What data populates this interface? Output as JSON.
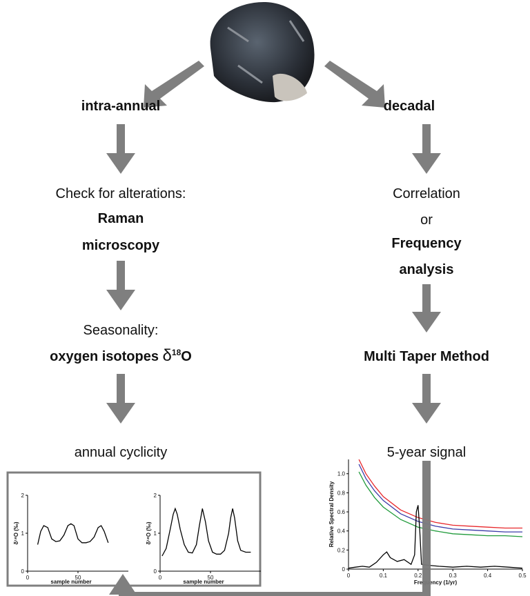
{
  "left": {
    "heading": "intra-annual",
    "check": "Check for alterations:",
    "method_1": "Raman",
    "method_2": "microscopy",
    "seasonality": "Seasonality:",
    "isotopes": "oxygen isotopes ",
    "delta": "δ",
    "sup": "18",
    "element": "O",
    "result": "annual cyclicity"
  },
  "right": {
    "heading": "decadal",
    "correlation": "Correlation",
    "or": "or",
    "frequency_1": "Frequency",
    "frequency_2": "analysis",
    "method": "Multi Taper Method",
    "result": "5-year signal"
  },
  "chart_data": [
    {
      "type": "line",
      "ylabel": "δ¹⁸O (‰)",
      "xlabel": "sample number",
      "xlim": [
        0,
        100
      ],
      "ylim": [
        0,
        2
      ],
      "xticks": [
        0,
        50
      ],
      "yticks": [
        0,
        1,
        2
      ],
      "x": [
        10,
        13,
        16,
        20,
        24,
        28,
        32,
        36,
        40,
        43,
        46,
        50,
        54,
        58,
        62,
        66,
        70,
        73,
        76,
        80
      ],
      "series": [
        {
          "color": "#000000",
          "values": [
            0.7,
            1.05,
            1.2,
            1.15,
            0.85,
            0.78,
            0.8,
            0.95,
            1.2,
            1.25,
            1.2,
            0.85,
            0.75,
            0.75,
            0.78,
            0.9,
            1.15,
            1.2,
            1.05,
            0.75
          ]
        }
      ]
    },
    {
      "type": "line",
      "ylabel": "δ¹⁸O (‰)",
      "xlabel": "sample number",
      "xlim": [
        0,
        100
      ],
      "ylim": [
        0,
        2
      ],
      "xticks": [
        0,
        50
      ],
      "yticks": [
        0,
        1,
        2
      ],
      "x": [
        2,
        6,
        10,
        13,
        15,
        17,
        20,
        24,
        28,
        32,
        36,
        39,
        42,
        45,
        48,
        52,
        56,
        60,
        64,
        68,
        70,
        72,
        74,
        77,
        80,
        85,
        90
      ],
      "series": [
        {
          "color": "#000000",
          "values": [
            0.4,
            0.6,
            1.1,
            1.5,
            1.65,
            1.5,
            1.1,
            0.7,
            0.5,
            0.48,
            0.7,
            1.2,
            1.65,
            1.3,
            0.8,
            0.5,
            0.45,
            0.45,
            0.55,
            1.0,
            1.4,
            1.65,
            1.4,
            0.8,
            0.55,
            0.5,
            0.5
          ]
        }
      ]
    },
    {
      "type": "line",
      "ylabel": "Relative Spectral Density",
      "xlabel": "Frequency (1/yr)",
      "xlim": [
        0,
        0.5
      ],
      "ylim": [
        0,
        1.15
      ],
      "xticks": [
        0,
        0.1,
        0.2,
        0.3,
        0.4,
        0.5
      ],
      "yticks": [
        0,
        0.2,
        0.4,
        0.6,
        0.8,
        {
          "value": 1,
          "label": "1.0"
        }
      ],
      "x": [
        0.03,
        0.05,
        0.075,
        0.1,
        0.15,
        0.2,
        0.25,
        0.3,
        0.35,
        0.4,
        0.45,
        0.5
      ],
      "series": [
        {
          "color": "#e8262a",
          "values": [
            1.15,
            1.0,
            0.87,
            0.76,
            0.62,
            0.54,
            0.49,
            0.46,
            0.45,
            0.44,
            0.43,
            0.43
          ]
        },
        {
          "color": "#3c3ca8",
          "values": [
            1.1,
            0.95,
            0.82,
            0.72,
            0.58,
            0.5,
            0.45,
            0.42,
            0.41,
            0.4,
            0.39,
            0.39
          ]
        },
        {
          "color": "#1f9a3a",
          "values": [
            1.02,
            0.88,
            0.75,
            0.65,
            0.52,
            0.44,
            0.4,
            0.37,
            0.36,
            0.35,
            0.35,
            0.34
          ]
        },
        {
          "color": "#000000",
          "x": [
            0,
            0.02,
            0.04,
            0.06,
            0.08,
            0.1,
            0.11,
            0.12,
            0.14,
            0.16,
            0.18,
            0.19,
            0.195,
            0.2,
            0.205,
            0.21,
            0.23,
            0.26,
            0.3,
            0.34,
            0.38,
            0.42,
            0.46,
            0.5
          ],
          "values": [
            0.01,
            0.02,
            0.03,
            0.02,
            0.07,
            0.15,
            0.18,
            0.12,
            0.08,
            0.1,
            0.05,
            0.15,
            0.6,
            0.67,
            0.4,
            0.05,
            0.04,
            0.03,
            0.02,
            0.03,
            0.02,
            0.03,
            0.02,
            0.01
          ]
        }
      ]
    }
  ]
}
